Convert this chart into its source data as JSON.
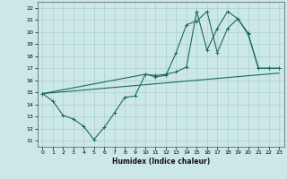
{
  "xlabel": "Humidex (Indice chaleur)",
  "bg_color": "#cce8e6",
  "grid_color": "#aacfcd",
  "line_color": "#1a6b5a",
  "xlim": [
    -0.5,
    23.5
  ],
  "ylim": [
    10.5,
    22.5
  ],
  "xticks": [
    0,
    1,
    2,
    3,
    4,
    5,
    6,
    7,
    8,
    9,
    10,
    11,
    12,
    13,
    14,
    15,
    16,
    17,
    18,
    19,
    20,
    21,
    22,
    23
  ],
  "yticks": [
    11,
    12,
    13,
    14,
    15,
    16,
    17,
    18,
    19,
    20,
    21,
    22
  ],
  "line1_x": [
    0,
    1,
    2,
    3,
    4,
    5,
    6,
    7,
    8,
    9,
    10,
    11,
    12,
    13,
    14,
    15,
    16,
    17,
    18,
    19,
    20,
    21,
    22,
    23
  ],
  "line1_y": [
    14.9,
    14.3,
    13.1,
    12.8,
    12.2,
    11.1,
    12.1,
    13.3,
    14.6,
    14.7,
    16.5,
    16.3,
    16.4,
    18.3,
    20.6,
    20.9,
    21.7,
    18.3,
    20.3,
    21.1,
    19.8,
    17.0,
    17.0,
    17.0
  ],
  "line2_x": [
    0,
    10,
    11,
    12,
    13,
    14,
    15,
    16,
    17,
    18,
    19,
    20,
    21,
    22,
    23
  ],
  "line2_y": [
    14.9,
    16.5,
    16.4,
    16.5,
    16.7,
    17.1,
    21.7,
    18.5,
    20.3,
    21.7,
    21.1,
    19.9,
    17.0,
    17.0,
    17.0
  ],
  "line3_x": [
    0,
    23
  ],
  "line3_y": [
    14.9,
    16.6
  ]
}
